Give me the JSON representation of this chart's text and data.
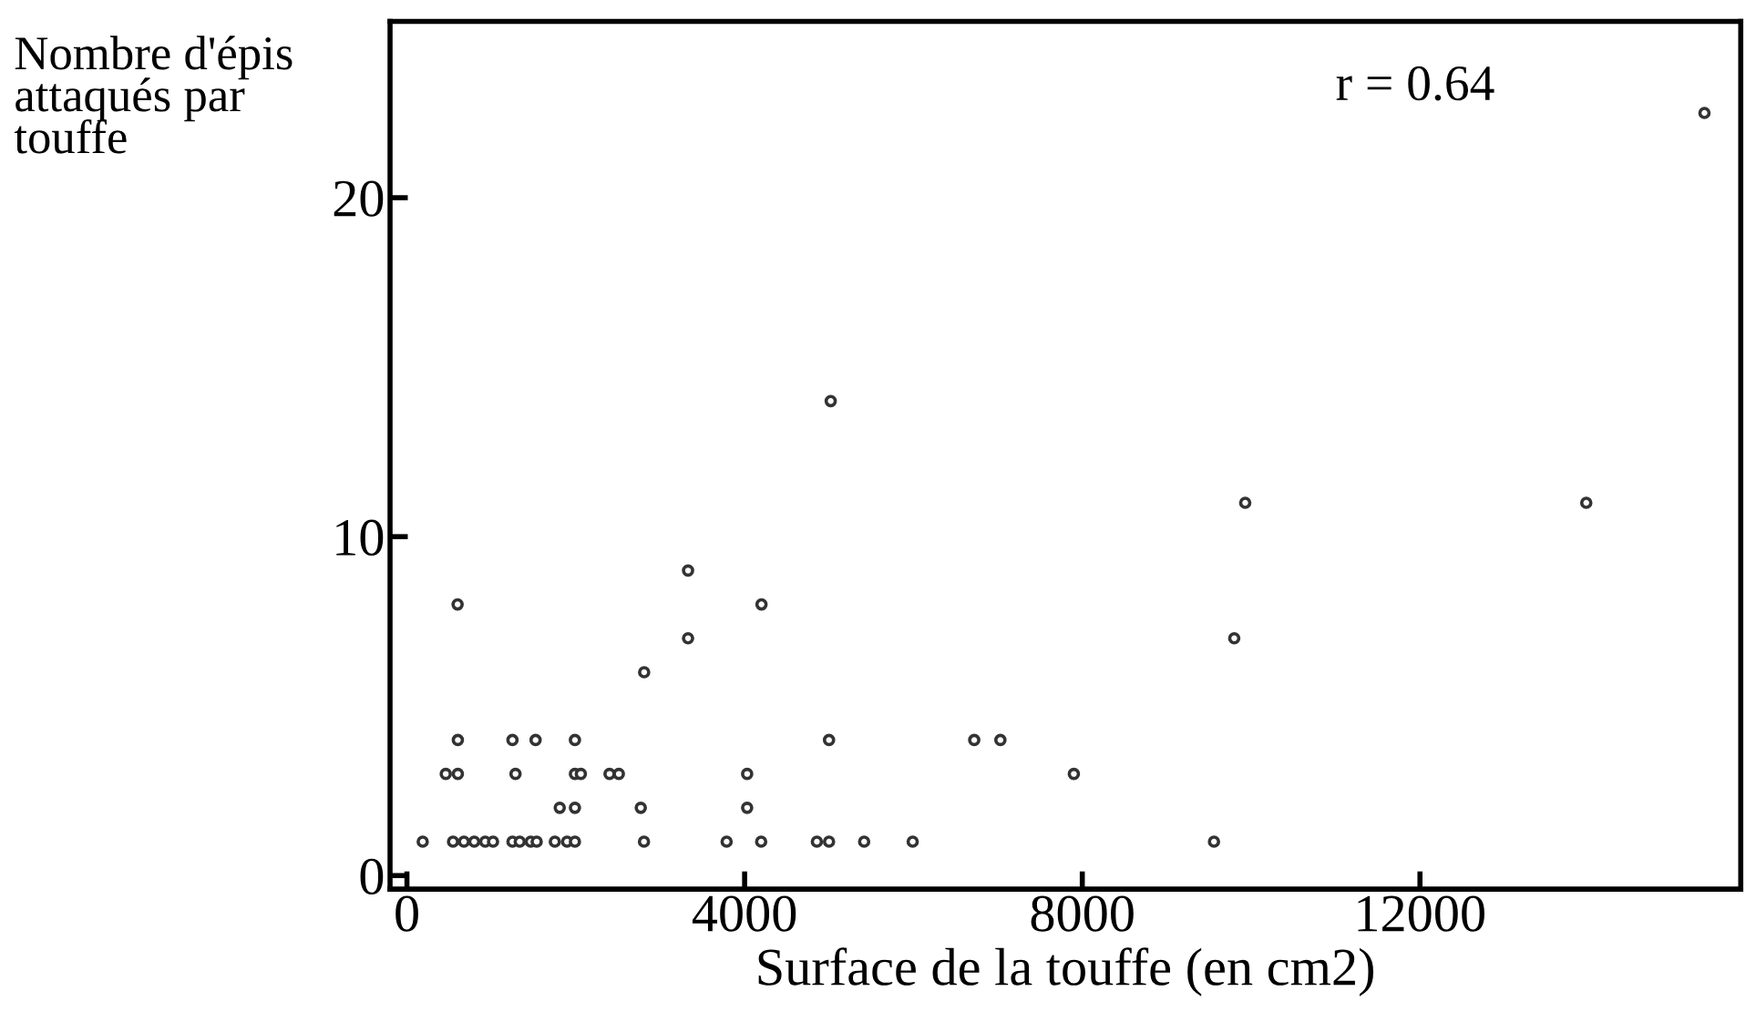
{
  "chart_data": {
    "type": "scatter",
    "xlabel": "Surface de la touffe (en cm2)",
    "ylabel": "Nombre d'épis\nattaqués par\ntouffe",
    "annotations": [
      "r = 0.64"
    ],
    "x": [
      603,
      1250,
      1524,
      1990,
      5000,
      460,
      603,
      1286,
      1990,
      2060,
      2400,
      2510,
      4030,
      1810,
      1990,
      2770,
      4030,
      187,
      546,
      675,
      797,
      927,
      1020,
      1250,
      1336,
      1466,
      1537,
      1752,
      1897,
      1990,
      2808,
      3787,
      4196,
      4856,
      5000,
      5416,
      5991,
      9560,
      600,
      3330,
      4200,
      3330,
      2810,
      9930,
      13970,
      9800,
      6720,
      7030,
      7900,
      5020,
      15370
    ],
    "values": [
      4,
      4,
      4,
      4,
      4,
      3,
      3,
      3,
      3,
      3,
      3,
      3,
      3,
      2,
      2,
      2,
      2,
      1,
      1,
      1,
      1,
      1,
      1,
      1,
      1,
      1,
      1,
      1,
      1,
      1,
      1,
      1,
      1,
      1,
      1,
      1,
      1,
      1,
      8,
      9,
      8,
      7,
      6,
      11,
      11,
      7,
      4,
      4,
      3,
      14,
      22.5
    ],
    "color": "#333333",
    "marker": "circle",
    "xlim": [
      -200,
      15800
    ],
    "xticks": [
      0,
      4000,
      8000,
      12000
    ],
    "ylim": [
      -0.4,
      25.2
    ],
    "yticks": [
      0,
      10,
      20
    ],
    "grid": false
  }
}
